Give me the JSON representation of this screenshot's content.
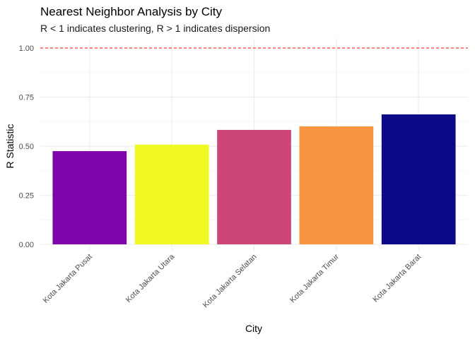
{
  "chart_data": {
    "type": "bar",
    "title": "Nearest Neighbor Analysis by City",
    "subtitle": "R < 1 indicates clustering, R > 1 indicates dispersion",
    "xlabel": "City",
    "ylabel": "R Statistic",
    "categories": [
      "Kota Jakarta Pusat",
      "Kota Jakarta Utara",
      "Kota Jakarta Selatan",
      "Kota Jakarta Timur",
      "Kota Jakarta Barat"
    ],
    "values": [
      0.475,
      0.508,
      0.583,
      0.601,
      0.662
    ],
    "bar_colors": [
      "#7E03A8",
      "#F0F921",
      "#CC4778",
      "#F89540",
      "#0D0887"
    ],
    "ylim": [
      0,
      1.0
    ],
    "yticks": [
      0.0,
      0.25,
      0.5,
      0.75,
      1.0
    ],
    "ytick_labels": [
      "0.00",
      "0.25",
      "0.50",
      "0.75",
      "1.00"
    ],
    "reference_line": {
      "value": 1.0,
      "style": "dashed",
      "color": "#FF0000"
    },
    "grid": true,
    "legend": "none"
  }
}
